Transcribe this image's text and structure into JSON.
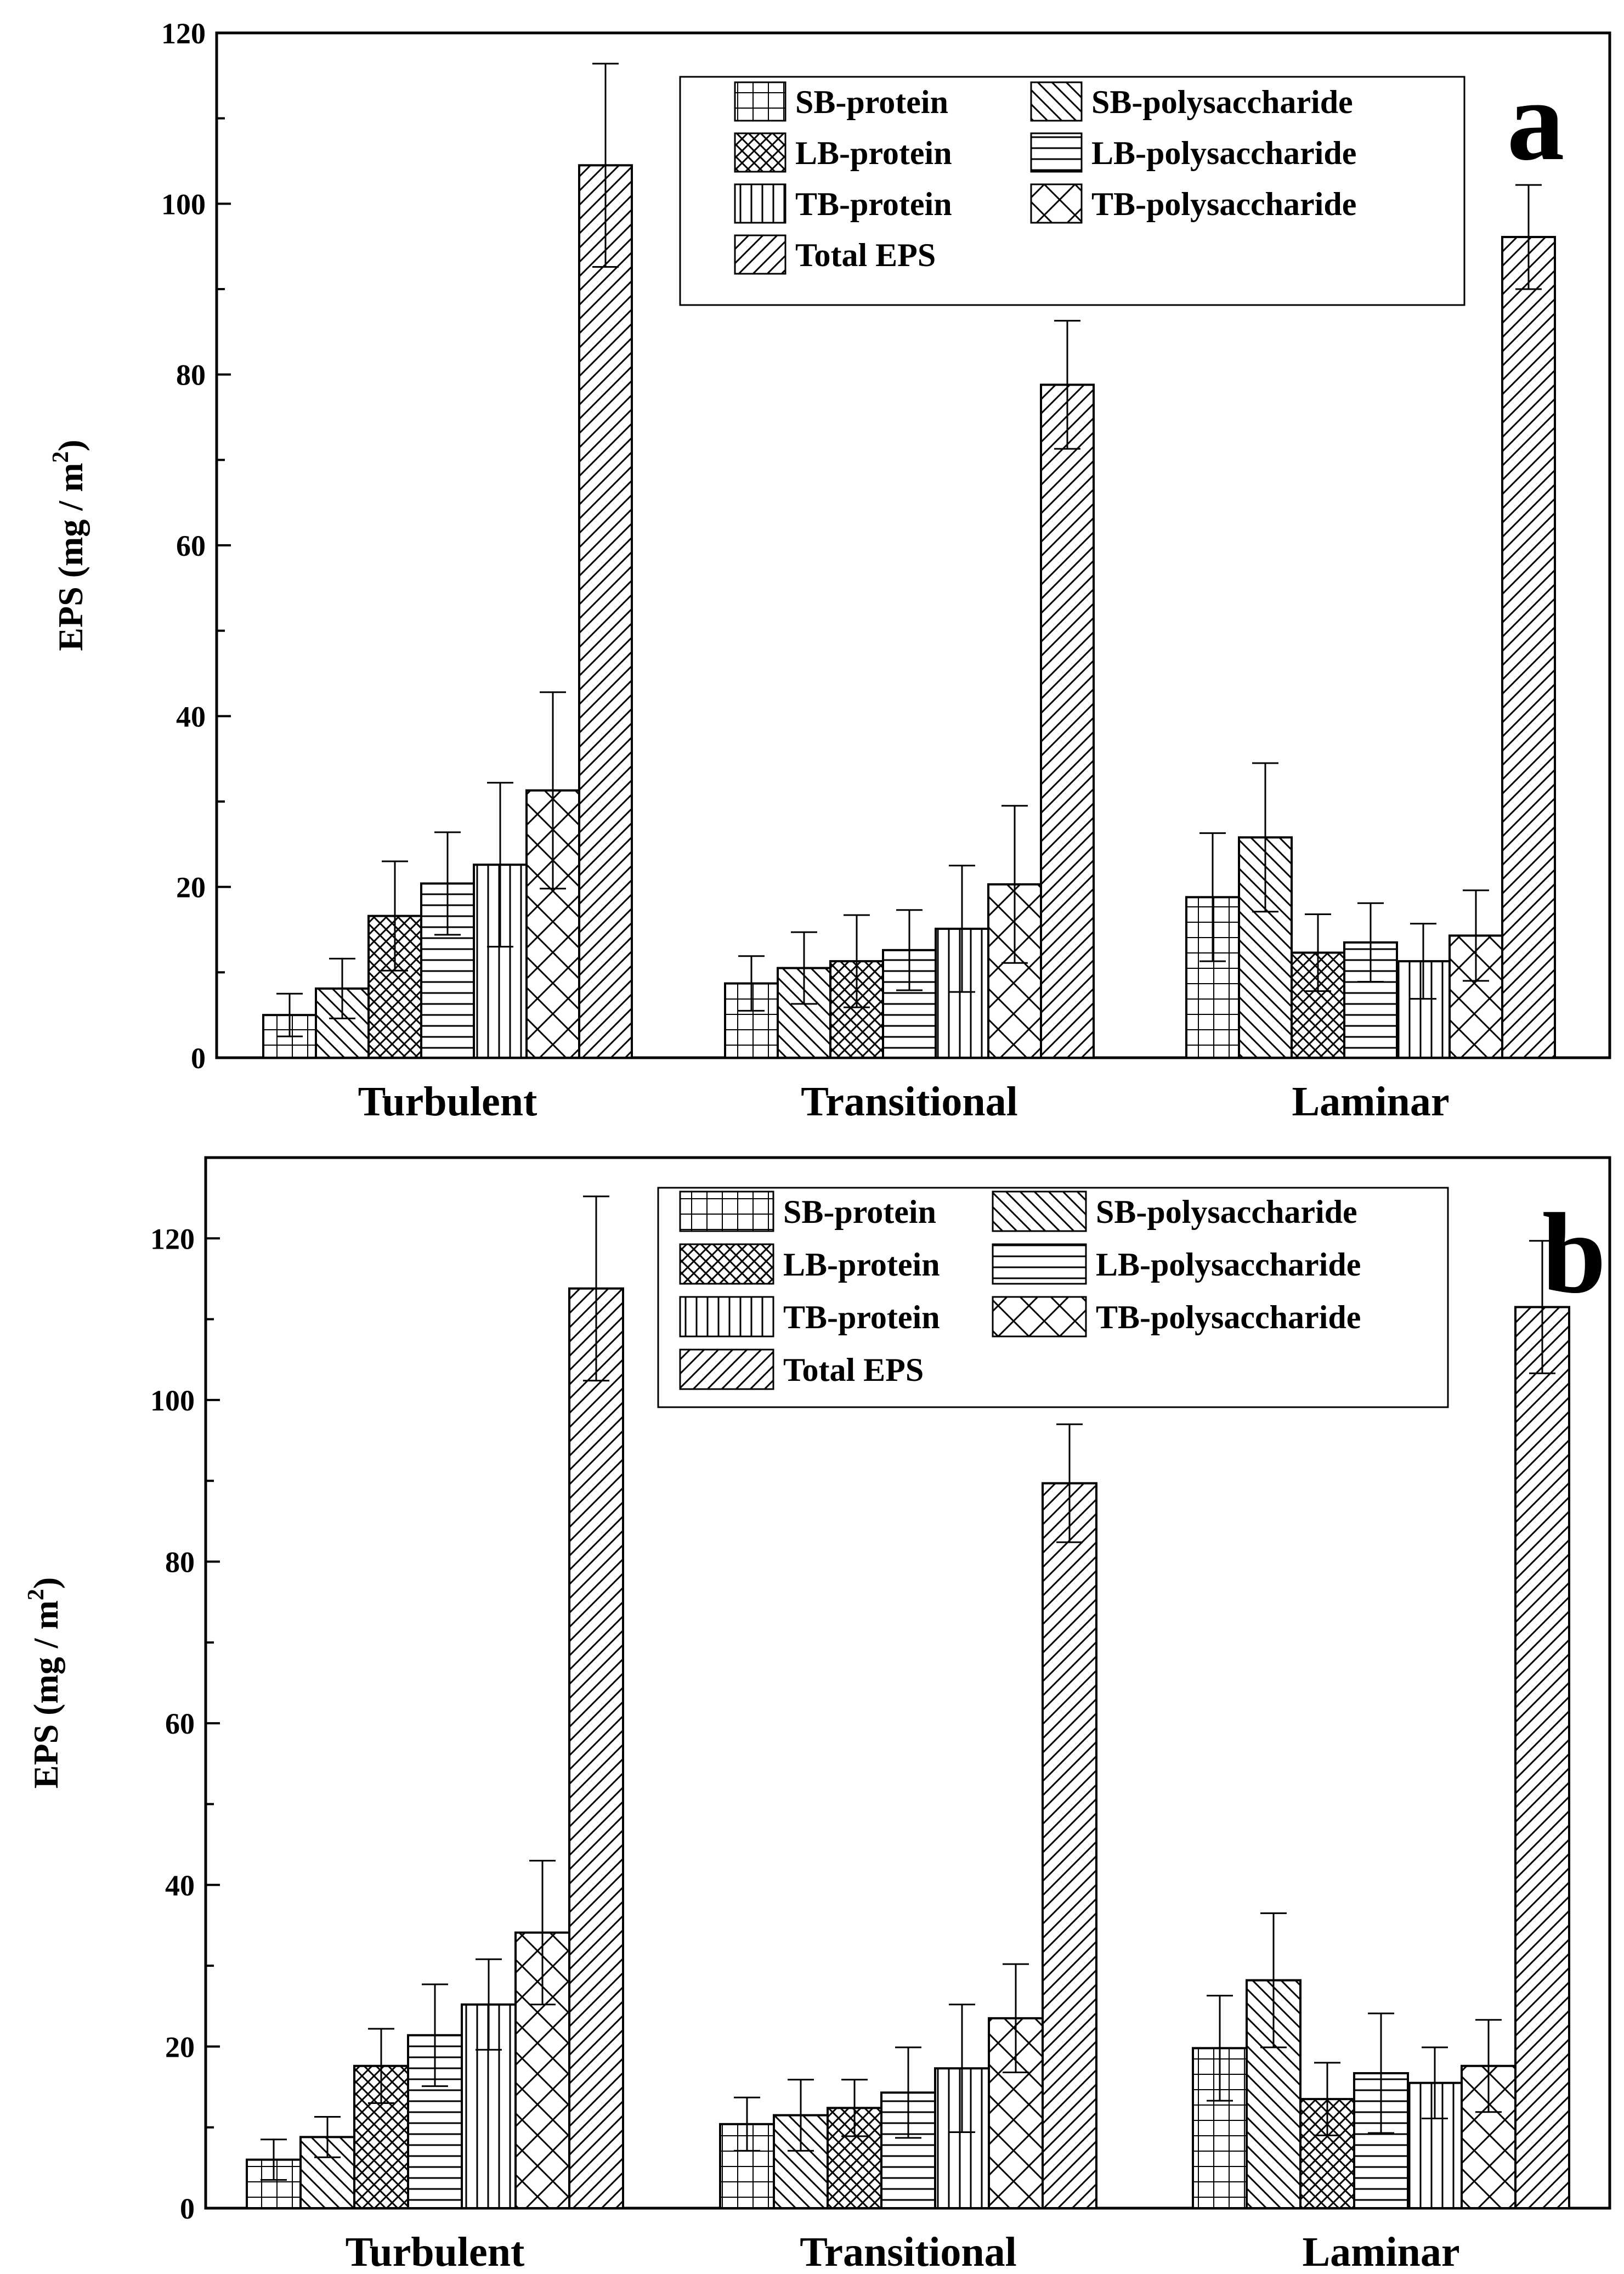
{
  "series_names": [
    "SB-protein",
    "SB-polysaccharide",
    "LB-protein",
    "LB-polysaccharide",
    "TB-protein",
    "TB-polysaccharide",
    "Total EPS"
  ],
  "chart_data": [
    {
      "type": "bar",
      "panel_label": "a",
      "ylabel": "EPS (mg / m",
      "ylabel_sup": "2",
      "ylabel_close": ")",
      "ylim": [
        0,
        120
      ],
      "yticks": [
        0,
        20,
        40,
        60,
        80,
        100,
        120
      ],
      "categories": [
        "Turbulent",
        "Transitional",
        "Laminar"
      ],
      "series": [
        {
          "name": "SB-protein",
          "values": [
            5.0,
            8.7,
            18.8
          ],
          "errors": [
            2.5,
            3.2,
            7.5
          ]
        },
        {
          "name": "SB-polysaccharide",
          "values": [
            8.1,
            10.5,
            25.8
          ],
          "errors": [
            3.5,
            4.2,
            8.7
          ]
        },
        {
          "name": "LB-protein",
          "values": [
            16.6,
            11.3,
            12.3
          ],
          "errors": [
            6.4,
            5.4,
            4.5
          ]
        },
        {
          "name": "LB-polysaccharide",
          "values": [
            20.4,
            12.6,
            13.5
          ],
          "errors": [
            6.0,
            4.7,
            4.6
          ]
        },
        {
          "name": "TB-protein",
          "values": [
            22.6,
            15.1,
            11.3
          ],
          "errors": [
            9.6,
            7.4,
            4.4
          ]
        },
        {
          "name": "TB-polysaccharide",
          "values": [
            31.3,
            20.3,
            14.3
          ],
          "errors": [
            11.5,
            9.2,
            5.3
          ]
        },
        {
          "name": "Total EPS",
          "values": [
            104.5,
            78.8,
            96.1
          ],
          "errors": [
            11.9,
            7.5,
            6.1
          ]
        }
      ],
      "legend_position": "top-right"
    },
    {
      "type": "bar",
      "panel_label": "b",
      "ylabel": "EPS (mg / m",
      "ylabel_sup": "2",
      "ylabel_close": ")",
      "ylim": [
        0,
        130
      ],
      "yticks": [
        0,
        20,
        40,
        60,
        80,
        100,
        120
      ],
      "categories": [
        "Turbulent",
        "Transitional",
        "Laminar"
      ],
      "series": [
        {
          "name": "SB-protein",
          "values": [
            6.0,
            10.4,
            19.8
          ],
          "errors": [
            2.5,
            3.3,
            6.5
          ]
        },
        {
          "name": "SB-polysaccharide",
          "values": [
            8.8,
            11.5,
            28.2
          ],
          "errors": [
            2.5,
            4.4,
            8.3
          ]
        },
        {
          "name": "LB-protein",
          "values": [
            17.6,
            12.4,
            13.5
          ],
          "errors": [
            4.6,
            3.5,
            4.5
          ]
        },
        {
          "name": "LB-polysaccharide",
          "values": [
            21.4,
            14.3,
            16.7
          ],
          "errors": [
            6.3,
            5.6,
            7.4
          ]
        },
        {
          "name": "TB-protein",
          "values": [
            25.2,
            17.3,
            15.5
          ],
          "errors": [
            5.6,
            7.9,
            4.4
          ]
        },
        {
          "name": "TB-polysaccharide",
          "values": [
            34.1,
            23.5,
            17.6
          ],
          "errors": [
            8.9,
            6.7,
            5.7
          ]
        },
        {
          "name": "Total EPS",
          "values": [
            113.8,
            89.7,
            111.5
          ],
          "errors": [
            11.4,
            7.3,
            8.2
          ]
        }
      ],
      "legend_position": "top-right"
    }
  ]
}
